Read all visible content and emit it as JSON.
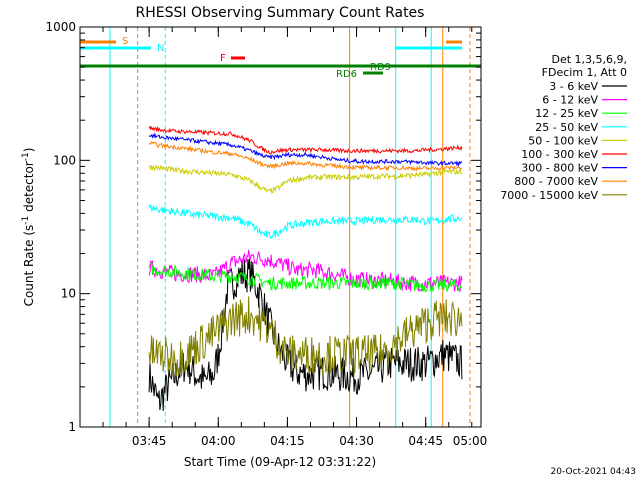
{
  "chart_data": {
    "type": "line",
    "title": "RHESSI Observing Summary Count Rates",
    "xlabel": "Start Time (09-Apr-12 03:31:22)",
    "ylabel_main": "Count Rate (s",
    "ylabel_sup1": "-1",
    "ylabel_mid": " detector",
    "ylabel_sup2": "-1",
    "ylabel_end": ")",
    "y_scale": "log",
    "ylim": [
      1,
      1000
    ],
    "xlim_minutes": [
      -15,
      72
    ],
    "x_ticks": [
      {
        "minute": 0,
        "label": "03:45"
      },
      {
        "minute": 15,
        "label": "04:00"
      },
      {
        "minute": 30,
        "label": "04:15"
      },
      {
        "minute": 45,
        "label": "04:30"
      },
      {
        "minute": 60,
        "label": "04:45"
      },
      {
        "minute": 75,
        "label": "05:00"
      }
    ],
    "y_ticks": [
      {
        "value": 1,
        "label": "1"
      },
      {
        "value": 10,
        "label": "10"
      },
      {
        "value": 100,
        "label": "100"
      },
      {
        "value": 1000,
        "label": "1000"
      }
    ],
    "legend_header": [
      "Det 1,3,5,6,9,",
      "FDecim 1, Att 0"
    ],
    "legend_placement": "right",
    "timestamp": "20-Oct-2021 04:43",
    "series": [
      {
        "name": "3 - 6 keV",
        "color": "#000000",
        "x": [
          -2,
          0,
          2,
          4,
          6,
          8,
          10,
          12,
          14,
          15,
          16,
          17,
          18,
          19,
          20,
          22,
          24,
          26,
          28,
          30,
          32,
          34,
          36,
          38,
          40,
          44,
          48,
          52,
          56,
          60,
          64,
          68
        ],
        "y": [
          3.5,
          2.5,
          1.5,
          2,
          2.5,
          3,
          2.5,
          2.2,
          2.5,
          3.5,
          6,
          11,
          12,
          13,
          14,
          14,
          10,
          6,
          4,
          3,
          2.6,
          2.5,
          2.5,
          2.6,
          2.5,
          2.4,
          2.5,
          3,
          3,
          3,
          3.5,
          3
        ]
      },
      {
        "name": "6 - 12 keV",
        "color": "#ff00ff",
        "x": [
          -2,
          2,
          6,
          10,
          14,
          18,
          22,
          26,
          28,
          30,
          32,
          36,
          40,
          44,
          48,
          52,
          56,
          60,
          64,
          68
        ],
        "y": [
          16,
          15,
          14,
          14,
          13.5,
          17,
          19,
          18,
          17,
          16,
          15,
          15,
          14,
          13,
          12.5,
          12.5,
          12,
          12,
          12,
          12
        ]
      },
      {
        "name": "12 - 25 keV",
        "color": "#00ff00",
        "x": [
          -2,
          2,
          6,
          10,
          14,
          18,
          22,
          26,
          30,
          34,
          38,
          42,
          46,
          50,
          54,
          58,
          62,
          66,
          68
        ],
        "y": [
          16,
          15,
          14.5,
          14,
          13.5,
          13.5,
          13,
          12,
          12,
          12,
          12,
          12,
          12,
          12,
          12,
          11.5,
          11.5,
          11.5,
          11.5
        ]
      },
      {
        "name": "25 - 50 keV",
        "color": "#00ffff",
        "x": [
          -2,
          2,
          6,
          10,
          14,
          18,
          22,
          24,
          26,
          28,
          30,
          34,
          38,
          42,
          46,
          50,
          54,
          58,
          60,
          62,
          64,
          68
        ],
        "y": [
          46,
          43,
          41,
          39,
          38,
          37,
          33,
          29,
          27,
          29,
          32,
          34,
          35,
          35,
          35,
          36,
          36,
          36,
          35,
          35,
          36,
          37
        ]
      },
      {
        "name": "50 - 100 keV",
        "color": "#cccc00",
        "x": [
          -2,
          2,
          6,
          10,
          14,
          18,
          22,
          24,
          26,
          28,
          30,
          34,
          38,
          42,
          46,
          50,
          54,
          58,
          60,
          62,
          64,
          68
        ],
        "y": [
          92,
          88,
          84,
          82,
          80,
          78,
          70,
          63,
          58,
          62,
          70,
          74,
          75,
          75,
          75,
          76,
          76,
          78,
          78,
          80,
          82,
          82
        ]
      },
      {
        "name": "100 - 300 keV",
        "color": "#ff0000",
        "x": [
          -2,
          2,
          6,
          10,
          14,
          18,
          22,
          24,
          26,
          28,
          30,
          34,
          38,
          42,
          46,
          50,
          54,
          58,
          60,
          62,
          64,
          68
        ],
        "y": [
          180,
          170,
          165,
          163,
          160,
          158,
          140,
          125,
          115,
          118,
          120,
          120,
          120,
          118,
          118,
          118,
          118,
          118,
          120,
          120,
          122,
          125
        ]
      },
      {
        "name": "300 - 800 keV",
        "color": "#0000ff",
        "x": [
          -2,
          2,
          6,
          10,
          14,
          18,
          22,
          24,
          26,
          28,
          30,
          34,
          38,
          42,
          46,
          50,
          54,
          58,
          60,
          62,
          64,
          68
        ],
        "y": [
          160,
          150,
          145,
          140,
          135,
          130,
          118,
          110,
          105,
          107,
          110,
          110,
          105,
          100,
          98,
          98,
          98,
          97,
          96,
          95,
          95,
          95
        ]
      },
      {
        "name": "800 - 7000 keV",
        "color": "#ff8000",
        "x": [
          -2,
          2,
          6,
          10,
          14,
          18,
          22,
          24,
          26,
          28,
          30,
          34,
          38,
          42,
          46,
          50,
          54,
          58,
          60,
          62,
          64,
          68
        ],
        "y": [
          140,
          130,
          125,
          120,
          115,
          112,
          102,
          95,
          90,
          92,
          95,
          95,
          92,
          90,
          88,
          88,
          88,
          87,
          87,
          87,
          88,
          88
        ]
      },
      {
        "name": "7000 - 15000 keV",
        "color": "#808000",
        "x": [
          -2,
          2,
          6,
          10,
          14,
          18,
          22,
          26,
          30,
          34,
          38,
          42,
          46,
          50,
          54,
          58,
          62,
          66,
          68
        ],
        "y": [
          3.5,
          3.5,
          3.2,
          4,
          5,
          6.5,
          7,
          5.5,
          3.5,
          3.5,
          3.5,
          3.5,
          3.5,
          3.5,
          4.5,
          5.5,
          6.5,
          6.5,
          6.5
        ]
      }
    ],
    "flags": [
      {
        "label": "S",
        "color": "#ff8000"
      },
      {
        "label": "N",
        "color": "#00ffff"
      },
      {
        "label": "F",
        "color": "#ff0000"
      },
      {
        "label": "RD9",
        "color": "#008000"
      },
      {
        "label": "RD6",
        "color": "#008000"
      }
    ],
    "grid": false
  }
}
